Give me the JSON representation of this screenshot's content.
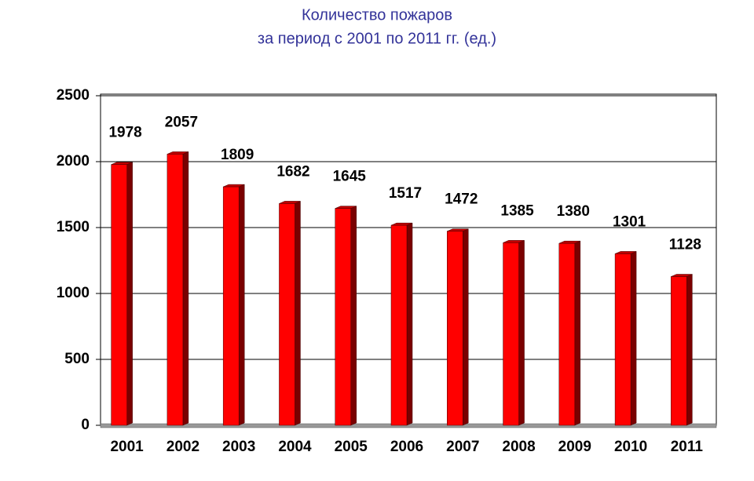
{
  "chart_data": {
    "type": "bar",
    "title": [
      "Количество пожаров",
      "за период с 2001 по 2011 гг. (ед.)"
    ],
    "categories": [
      "2001",
      "2002",
      "2003",
      "2004",
      "2005",
      "2006",
      "2007",
      "2008",
      "2009",
      "2010",
      "2011"
    ],
    "values": [
      1978,
      2057,
      1809,
      1682,
      1645,
      1517,
      1472,
      1385,
      1380,
      1301,
      1128
    ],
    "color": "#ff0000",
    "ylim": [
      0,
      2500
    ],
    "yticks": [
      0,
      500,
      1000,
      1500,
      2000,
      2500
    ],
    "grid": true
  }
}
